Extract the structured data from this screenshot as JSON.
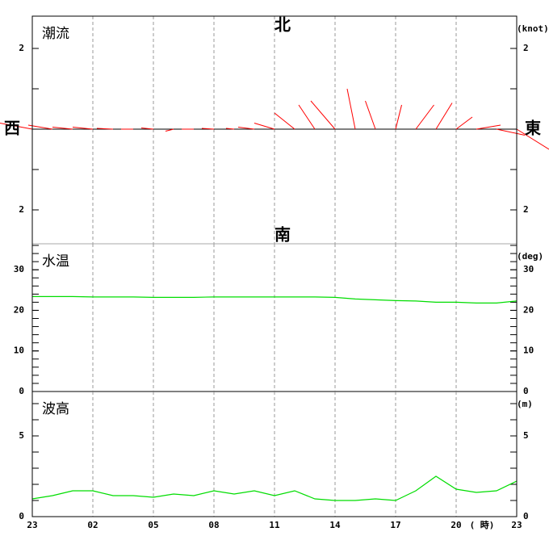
{
  "chart_data": [
    {
      "type": "vector",
      "title": "潮流",
      "unit": "(knot)",
      "direction_labels": {
        "north": "北",
        "south": "南",
        "west": "西",
        "east": "東"
      },
      "color": "#ff0000",
      "u": [
        -0.8,
        -0.6,
        -0.5,
        -0.5,
        -0.4,
        -0.3,
        -0.3,
        -0.2,
        -0.3,
        -0.3,
        -0.2,
        -0.4,
        -0.5,
        -0.5,
        -0.4,
        -0.6,
        -0.2,
        -0.25,
        0.15,
        0.45,
        0.4,
        0.4,
        0.6,
        0.7,
        0.8
      ],
      "v": [
        0.15,
        0.1,
        0.05,
        0.05,
        0.02,
        0,
        0.03,
        -0.05,
        0,
        0.02,
        0.02,
        0.05,
        0.15,
        0.4,
        0.6,
        0.7,
        1.0,
        0.7,
        0.6,
        0.6,
        0.65,
        0.3,
        0.1,
        -0.15,
        -0.5
      ],
      "ylim": [
        -2.84,
        2.8
      ],
      "yticks": [
        {
          "value": -2,
          "label": "2"
        },
        2
      ],
      "minor_step": 1
    },
    {
      "type": "line",
      "title": "水温",
      "unit": "(deg)",
      "color": "#00dd00",
      "values": [
        23.4,
        23.4,
        23.4,
        23.3,
        23.3,
        23.3,
        23.2,
        23.2,
        23.2,
        23.3,
        23.3,
        23.3,
        23.3,
        23.3,
        23.3,
        23.2,
        22.8,
        22.6,
        22.4,
        22.3,
        22.0,
        22.0,
        21.8,
        21.8,
        22.3
      ],
      "ylim": [
        0,
        36.4
      ],
      "yticks": [
        0,
        10,
        20,
        30
      ],
      "minor_step": 2
    },
    {
      "type": "line",
      "title": "波高",
      "unit": "(m)",
      "color": "#00dd00",
      "values": [
        1.1,
        1.3,
        1.6,
        1.6,
        1.3,
        1.3,
        1.2,
        1.4,
        1.3,
        1.6,
        1.4,
        1.6,
        1.3,
        1.6,
        1.1,
        1.0,
        1.0,
        1.1,
        1.0,
        1.6,
        2.5,
        1.7,
        1.5,
        1.6,
        2.2
      ],
      "ylim": [
        0,
        7.75
      ],
      "yticks": [
        0,
        5
      ],
      "minor_step": 1,
      "categories": [
        "23",
        null,
        null,
        "02",
        null,
        null,
        "05",
        null,
        null,
        "08",
        null,
        null,
        "11",
        null,
        null,
        "14",
        null,
        null,
        "17",
        null,
        null,
        "20",
        null,
        null,
        "23"
      ],
      "x_unit": "( 時)"
    }
  ]
}
